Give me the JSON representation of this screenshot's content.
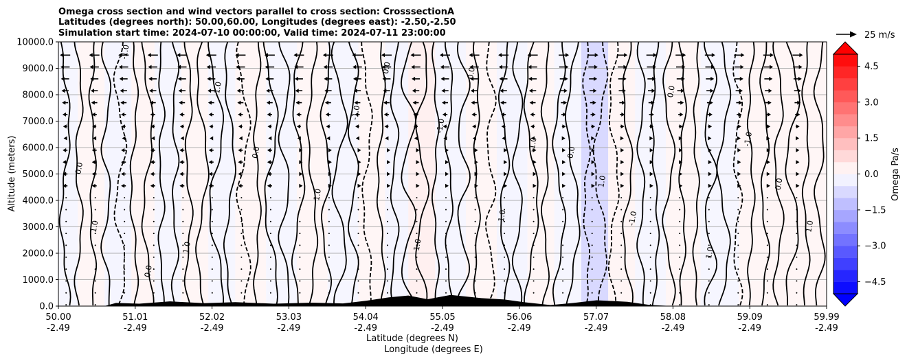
{
  "chart_data": {
    "type": "heatmap",
    "title_lines": [
      "Omega cross section and wind vectors parallel to cross section: CrosssectionA",
      "Latitudes (degrees north): 50.00,60.00, Longitudes (degrees east): -2.50,-2.50",
      "Simulation start time: 2024-07-10 00:00:00, Valid time: 2024-07-11 23:00:00"
    ],
    "ylabel": "Altitude (meters)",
    "xlabel_lat": "Latitude (degrees N)",
    "xlabel_lon": "Longitude (degrees E)",
    "ylim": [
      0,
      10000
    ],
    "y_ticks": [
      "0.0",
      "1000.0",
      "2000.0",
      "3000.0",
      "4000.0",
      "5000.0",
      "6000.0",
      "7000.0",
      "8000.0",
      "9000.0",
      "10000.0"
    ],
    "x_ticks": [
      {
        "lat": "50.00",
        "lon": "-2.49",
        "frac": 0.0
      },
      {
        "lat": "51.01",
        "lon": "-2.49",
        "frac": 0.1
      },
      {
        "lat": "52.02",
        "lon": "-2.49",
        "frac": 0.2
      },
      {
        "lat": "53.03",
        "lon": "-2.49",
        "frac": 0.3
      },
      {
        "lat": "54.04",
        "lon": "-2.49",
        "frac": 0.4
      },
      {
        "lat": "55.05",
        "lon": "-2.49",
        "frac": 0.5
      },
      {
        "lat": "56.06",
        "lon": "-2.49",
        "frac": 0.6
      },
      {
        "lat": "57.07",
        "lon": "-2.49",
        "frac": 0.7
      },
      {
        "lat": "58.08",
        "lon": "-2.49",
        "frac": 0.8
      },
      {
        "lat": "59.09",
        "lon": "-2.49",
        "frac": 0.9
      },
      {
        "lat": "59.99",
        "lon": "-2.49",
        "frac": 1.0
      }
    ],
    "colorbar": {
      "label": "Omega Pa/s",
      "min": -5.0,
      "max": 5.0,
      "step": 0.5,
      "ticks": [
        "4.5",
        "3.0",
        "1.5",
        "0.0",
        "−1.5",
        "−3.0",
        "−4.5"
      ],
      "tick_values": [
        4.5,
        3.0,
        1.5,
        0.0,
        -1.5,
        -3.0,
        -4.5
      ]
    },
    "vector_key": {
      "label": "25 m/s"
    },
    "contour_labels": [
      "0.0",
      "1.0",
      "-1.0"
    ],
    "colors": {
      "negative": "#0000ff",
      "positive": "#ff0000",
      "neutral": "#ffffff",
      "terrain": "#000000"
    },
    "columns": [
      {
        "lat": 50.1,
        "omega": -0.3
      },
      {
        "lat": 50.4,
        "omega": 0.2
      },
      {
        "lat": 50.8,
        "omega": -0.4
      },
      {
        "lat": 51.1,
        "omega": 0.4
      },
      {
        "lat": 51.4,
        "omega": -0.3
      },
      {
        "lat": 51.8,
        "omega": 0.2
      },
      {
        "lat": 52.1,
        "omega": -0.2
      },
      {
        "lat": 52.5,
        "omega": 0.3
      },
      {
        "lat": 52.9,
        "omega": -0.3
      },
      {
        "lat": 53.3,
        "omega": 0.3
      },
      {
        "lat": 53.7,
        "omega": -0.2
      },
      {
        "lat": 54.1,
        "omega": 0.2
      },
      {
        "lat": 54.4,
        "omega": -0.4
      },
      {
        "lat": 54.7,
        "omega": 0.6
      },
      {
        "lat": 55.1,
        "omega": -0.3
      },
      {
        "lat": 55.5,
        "omega": 0.3
      },
      {
        "lat": 55.9,
        "omega": -0.4
      },
      {
        "lat": 56.3,
        "omega": 0.2
      },
      {
        "lat": 56.6,
        "omega": -0.3
      },
      {
        "lat": 57.0,
        "omega": -1.5
      },
      {
        "lat": 57.3,
        "omega": 0.4
      },
      {
        "lat": 57.7,
        "omega": -0.3
      },
      {
        "lat": 58.1,
        "omega": 0.2
      },
      {
        "lat": 58.6,
        "omega": -0.2
      },
      {
        "lat": 59.1,
        "omega": 0.3
      },
      {
        "lat": 59.6,
        "omega": 0.2
      }
    ],
    "terrain": [
      {
        "lat": 50.0,
        "alt": 0
      },
      {
        "lat": 50.6,
        "alt": 0
      },
      {
        "lat": 50.75,
        "alt": 120
      },
      {
        "lat": 51.05,
        "alt": 90
      },
      {
        "lat": 51.45,
        "alt": 180
      },
      {
        "lat": 51.9,
        "alt": 110
      },
      {
        "lat": 52.3,
        "alt": 150
      },
      {
        "lat": 52.8,
        "alt": 90
      },
      {
        "lat": 53.3,
        "alt": 130
      },
      {
        "lat": 53.7,
        "alt": 100
      },
      {
        "lat": 54.0,
        "alt": 200
      },
      {
        "lat": 54.3,
        "alt": 330
      },
      {
        "lat": 54.55,
        "alt": 400
      },
      {
        "lat": 54.8,
        "alt": 260
      },
      {
        "lat": 55.1,
        "alt": 420
      },
      {
        "lat": 55.5,
        "alt": 300
      },
      {
        "lat": 55.8,
        "alt": 250
      },
      {
        "lat": 56.05,
        "alt": 150
      },
      {
        "lat": 56.4,
        "alt": 40
      },
      {
        "lat": 56.7,
        "alt": 120
      },
      {
        "lat": 57.0,
        "alt": 220
      },
      {
        "lat": 57.4,
        "alt": 160
      },
      {
        "lat": 57.7,
        "alt": 40
      },
      {
        "lat": 58.0,
        "alt": 0
      },
      {
        "lat": 59.99,
        "alt": 0
      }
    ]
  }
}
